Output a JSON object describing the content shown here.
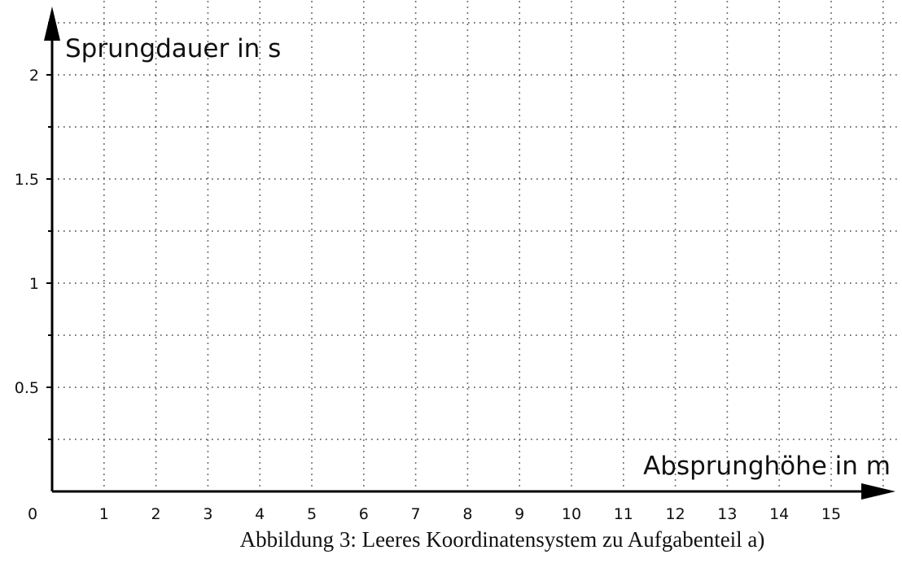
{
  "chart_data": {
    "type": "scatter",
    "title": "",
    "xlabel": "Absprunghöhe in m",
    "ylabel": "Sprungdauer in s",
    "xlim": [
      0,
      16.2
    ],
    "ylim": [
      0,
      2.3
    ],
    "x_ticks": [
      1,
      2,
      3,
      4,
      5,
      6,
      7,
      8,
      9,
      10,
      11,
      12,
      13,
      14,
      15
    ],
    "y_ticks": [
      0.5,
      1,
      1.5,
      2
    ],
    "y_minor_ticks": [
      0.25,
      0.75,
      1.25,
      1.75,
      2.25
    ],
    "origin_label": "0",
    "grid": true,
    "grid_style": "dotted",
    "series": []
  },
  "caption": "Abbildung 3: Leeres Koordinatensystem zu Aufgabenteil a)"
}
